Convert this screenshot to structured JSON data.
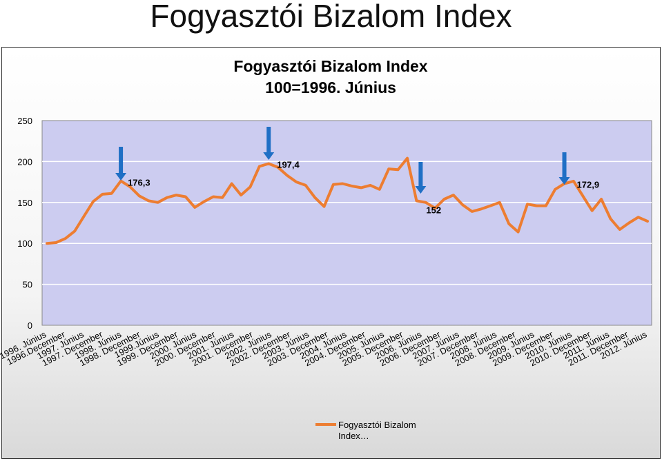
{
  "slide_title": "Fogyasztói Bizalom Index",
  "colors": {
    "line": "#ED7D31",
    "arrow": "#1F6FC5",
    "plot_bg": "#CCCCF0",
    "grid": "#FFFFFF"
  },
  "chart_data": {
    "type": "line",
    "title": "Fogyasztói Bizalom Index",
    "subtitle": "100=1996. Június",
    "ylim": [
      0,
      250
    ],
    "yticks": [
      0,
      50,
      100,
      150,
      200,
      250
    ],
    "grid": true,
    "legend_position": "bottom",
    "x_tick_labels": [
      "1996. Június",
      "1996.December",
      "1997. Június",
      "1997. December",
      "1998. Június",
      "1998. December",
      "1999.Június",
      "1999. December",
      "2000. Június",
      "2000. December",
      "2001. Június",
      "2001. December",
      "2002. Június",
      "2002. December",
      "2003. Június",
      "2003. December",
      "2004. Június",
      "2004. December",
      "2005. Június",
      "2005. December",
      "2006. Június",
      "2006. December",
      "2007. Június",
      "2007. December",
      "2008. Június",
      "2008. December",
      "2009. Június",
      "2009. December",
      "2010. Június",
      "2010. December",
      "2011. Június",
      "2011. December",
      "2012. Június"
    ],
    "series": [
      {
        "name": "Fogyasztói Bizalom Index…",
        "values": [
          100,
          101,
          106,
          115,
          133,
          151,
          160,
          161,
          176.3,
          169,
          158,
          152,
          150,
          156,
          159,
          157,
          144,
          151,
          157,
          156,
          173,
          159,
          169,
          194,
          197.4,
          193,
          183,
          175,
          171,
          156,
          145,
          172,
          173,
          170,
          168,
          171,
          166,
          191,
          190,
          204,
          152,
          150,
          143,
          154,
          159,
          147,
          139,
          142,
          146,
          150,
          124,
          114,
          148,
          146,
          146,
          166,
          172.9,
          176,
          158,
          140,
          154,
          130,
          117,
          125,
          132,
          127
        ]
      }
    ],
    "annotations": [
      {
        "label": "176,3",
        "index": 8
      },
      {
        "label": "197,4",
        "index": 24
      },
      {
        "label": "152",
        "index": 40
      },
      {
        "label": "172,9",
        "index": 56
      }
    ]
  }
}
